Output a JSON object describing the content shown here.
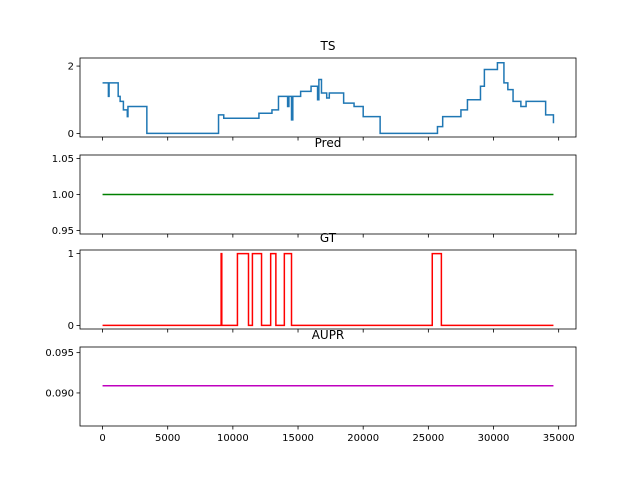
{
  "chart_data": [
    {
      "type": "line",
      "title": "TS",
      "x": [
        0,
        450,
        450,
        500,
        500,
        1200,
        1200,
        1350,
        1350,
        1600,
        1600,
        1900,
        1900,
        1950,
        1950,
        3400,
        3400,
        8900,
        8900,
        9300,
        9300,
        12000,
        12000,
        13000,
        13000,
        13500,
        13500,
        14200,
        14200,
        14300,
        14300,
        14500,
        14500,
        14600,
        14600,
        15200,
        15200,
        16000,
        16000,
        16500,
        16500,
        16600,
        16600,
        16800,
        16800,
        17200,
        17200,
        17400,
        17400,
        18500,
        18500,
        19300,
        19300,
        20000,
        20000,
        21300,
        21300,
        25700,
        25700,
        26100,
        26100,
        27500,
        27500,
        28000,
        28000,
        29000,
        29000,
        29300,
        29300,
        30300,
        30300,
        30800,
        30800,
        31100,
        31100,
        31500,
        31500,
        32100,
        32100,
        32500,
        32500,
        34000,
        34000,
        34600,
        34600
      ],
      "series": [
        {
          "name": "TS",
          "color": "#1f77b4",
          "values": [
            1.5,
            1.5,
            1.1,
            1.1,
            1.5,
            1.5,
            1.1,
            1.1,
            0.95,
            0.95,
            0.7,
            0.7,
            0.5,
            0.5,
            0.8,
            0.8,
            0,
            0,
            0.55,
            0.55,
            0.45,
            0.45,
            0.6,
            0.6,
            0.7,
            0.7,
            1.1,
            1.1,
            0.8,
            0.8,
            1.1,
            1.1,
            0.4,
            0.4,
            1.1,
            1.1,
            1.25,
            1.25,
            1.4,
            1.4,
            1.0,
            1.0,
            1.6,
            1.6,
            1.2,
            1.2,
            1.05,
            1.05,
            1.2,
            1.2,
            0.9,
            0.9,
            0.8,
            0.8,
            0.5,
            0.5,
            0,
            0,
            0.2,
            0.2,
            0.5,
            0.5,
            0.7,
            0.7,
            1.0,
            1.0,
            1.4,
            1.4,
            1.9,
            1.9,
            2.1,
            2.1,
            1.5,
            1.5,
            1.3,
            1.3,
            0.95,
            0.95,
            0.8,
            0.8,
            0.95,
            0.95,
            0.55,
            0.55,
            0.3
          ]
        }
      ],
      "xlim": [
        -1730,
        36330
      ],
      "xticks": [
        0,
        5000,
        10000,
        15000,
        20000,
        25000,
        30000,
        35000
      ],
      "ylim": [
        -0.107,
        2.24
      ],
      "yticks": [
        0,
        2
      ]
    },
    {
      "type": "line",
      "title": "Pred",
      "x": [
        0,
        34600
      ],
      "series": [
        {
          "name": "Pred",
          "color": "#008000",
          "values": [
            1,
            1
          ]
        }
      ],
      "xlim": [
        -1730,
        36330
      ],
      "xticks": [
        0,
        5000,
        10000,
        15000,
        20000,
        25000,
        30000,
        35000
      ],
      "ylim": [
        0.945,
        1.055
      ],
      "yticks": [
        {
          "value": 0.95,
          "label": "0.95"
        },
        {
          "value": 1,
          "label": "1.00"
        },
        {
          "value": 1.05,
          "label": "1.05"
        }
      ]
    },
    {
      "type": "line",
      "title": "GT",
      "x": [
        0,
        9100,
        9100,
        9150,
        9150,
        10350,
        10350,
        11200,
        11200,
        11500,
        11500,
        12200,
        12200,
        12900,
        12900,
        13300,
        13300,
        13950,
        13950,
        14500,
        14500,
        25300,
        25300,
        26000,
        26000,
        34600
      ],
      "series": [
        {
          "name": "GT",
          "color": "#ff0000",
          "values": [
            0,
            0,
            1,
            1,
            0,
            0,
            1,
            1,
            0,
            0,
            1,
            1,
            0,
            0,
            1,
            1,
            0,
            0,
            1,
            1,
            0,
            0,
            1,
            1,
            0,
            0
          ]
        }
      ],
      "xlim": [
        -1730,
        36330
      ],
      "xticks": [
        0,
        5000,
        10000,
        15000,
        20000,
        25000,
        30000,
        35000
      ],
      "ylim": [
        -0.05,
        1.05
      ],
      "yticks": [
        0,
        1
      ]
    },
    {
      "type": "line",
      "title": "AUPR",
      "x": [
        0,
        34600
      ],
      "series": [
        {
          "name": "AUPR",
          "color": "#bf00bf",
          "values": [
            0.0909,
            0.0909
          ]
        }
      ],
      "xlim": [
        -1730,
        36330
      ],
      "xticks": [
        0,
        5000,
        10000,
        15000,
        20000,
        25000,
        30000,
        35000
      ],
      "ylim": [
        0.0859,
        0.0957
      ],
      "yticks": [
        {
          "value": 0.09,
          "label": "0.090"
        },
        {
          "value": 0.095,
          "label": "0.095"
        }
      ]
    }
  ]
}
